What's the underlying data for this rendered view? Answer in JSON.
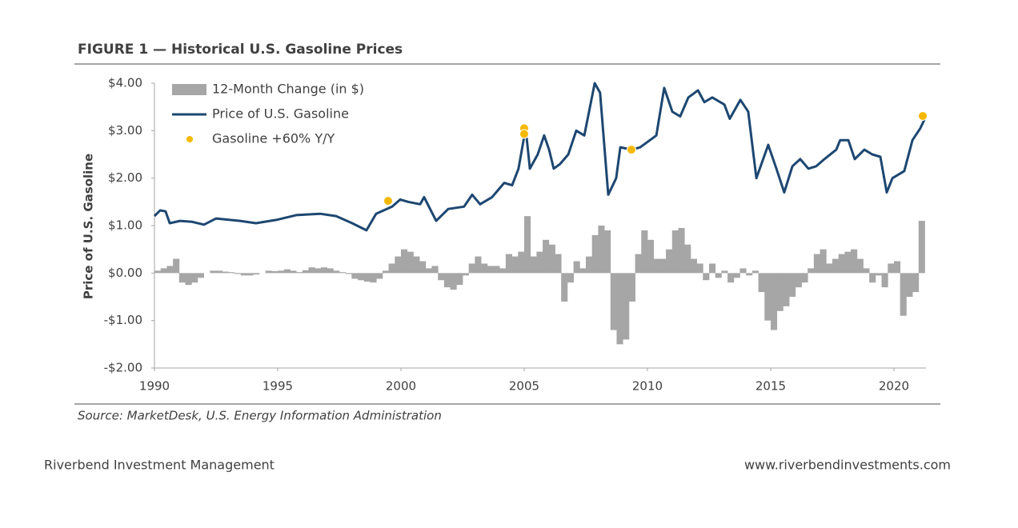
{
  "chart_data": {
    "type": "combo",
    "title": "FIGURE 1 — Historical U.S. Gasoline Prices",
    "y_label": "Price of U.S. Gasoline",
    "source": "Source: MarketDesk, U.S. Energy Information Administration",
    "xlim": [
      1990,
      2021.3
    ],
    "xticks": [
      1990,
      1995,
      2000,
      2005,
      2010,
      2015,
      2020
    ],
    "ylim": [
      -2,
      4
    ],
    "yticks": [
      {
        "value": -2,
        "label": "-$2.00"
      },
      {
        "value": -1,
        "label": "-$1.00"
      },
      {
        "value": 0,
        "label": "$0.00"
      },
      {
        "value": 1,
        "label": "$1.00"
      },
      {
        "value": 2,
        "label": "$2.00"
      },
      {
        "value": 3,
        "label": "$3.00"
      },
      {
        "value": 4,
        "label": "$4.00"
      }
    ],
    "legend": "upper left",
    "series": [
      {
        "name": "12-Month Change (in $)",
        "type": "bar",
        "color": "#a6a6a6",
        "x": [
          1990,
          1990.25,
          1990.5,
          1990.75,
          1991,
          1991.25,
          1991.5,
          1991.75,
          1992,
          1992.25,
          1992.5,
          1992.75,
          1993,
          1993.25,
          1993.5,
          1993.75,
          1994,
          1994.25,
          1994.5,
          1994.75,
          1995,
          1995.25,
          1995.5,
          1995.75,
          1996,
          1996.25,
          1996.5,
          1996.75,
          1997,
          1997.25,
          1997.5,
          1997.75,
          1998,
          1998.25,
          1998.5,
          1998.75,
          1999,
          1999.25,
          1999.5,
          1999.75,
          2000,
          2000.25,
          2000.5,
          2000.75,
          2001,
          2001.25,
          2001.5,
          2001.75,
          2002,
          2002.25,
          2002.5,
          2002.75,
          2003,
          2003.25,
          2003.5,
          2003.75,
          2004,
          2004.25,
          2004.5,
          2004.75,
          2005,
          2005.25,
          2005.5,
          2005.75,
          2006,
          2006.25,
          2006.5,
          2006.75,
          2007,
          2007.25,
          2007.5,
          2007.75,
          2008,
          2008.25,
          2008.5,
          2008.75,
          2009,
          2009.25,
          2009.5,
          2009.75,
          2010,
          2010.25,
          2010.5,
          2010.75,
          2011,
          2011.25,
          2011.5,
          2011.75,
          2012,
          2012.25,
          2012.5,
          2012.75,
          2013,
          2013.25,
          2013.5,
          2013.75,
          2014,
          2014.25,
          2014.5,
          2014.75,
          2015,
          2015.25,
          2015.5,
          2015.75,
          2016,
          2016.25,
          2016.5,
          2016.75,
          2017,
          2017.25,
          2017.5,
          2017.75,
          2018,
          2018.25,
          2018.5,
          2018.75,
          2019,
          2019.25,
          2019.5,
          2019.75,
          2020,
          2020.25,
          2020.5,
          2020.75,
          2021
        ],
        "values": [
          0.05,
          0.1,
          0.15,
          0.3,
          -0.2,
          -0.25,
          -0.2,
          -0.1,
          0,
          0.05,
          0.05,
          0.03,
          0.02,
          -0.02,
          -0.05,
          -0.05,
          -0.03,
          0,
          0.05,
          0.04,
          0.05,
          0.08,
          0.05,
          0.02,
          0.06,
          0.12,
          0.1,
          0.12,
          0.1,
          0.05,
          0.02,
          -0.02,
          -0.12,
          -0.15,
          -0.18,
          -0.2,
          -0.12,
          0.05,
          0.2,
          0.35,
          0.5,
          0.45,
          0.35,
          0.25,
          0.1,
          0.15,
          -0.15,
          -0.3,
          -0.35,
          -0.25,
          -0.05,
          0.2,
          0.35,
          0.2,
          0.15,
          0.15,
          0.1,
          0.4,
          0.35,
          0.45,
          1.2,
          0.35,
          0.45,
          0.7,
          0.6,
          0.4,
          -0.6,
          -0.2,
          0.25,
          0.1,
          0.35,
          0.8,
          1,
          0.9,
          -1.2,
          -1.5,
          -1.4,
          -0.6,
          0.4,
          0.9,
          0.7,
          0.3,
          0.3,
          0.5,
          0.9,
          0.95,
          0.6,
          0.3,
          0.2,
          -0.15,
          0.2,
          -0.1,
          0.05,
          -0.2,
          -0.1,
          0.1,
          -0.05,
          0.05,
          -0.4,
          -1,
          -1.2,
          -0.8,
          -0.7,
          -0.5,
          -0.3,
          -0.2,
          0.1,
          0.4,
          0.5,
          0.2,
          0.3,
          0.4,
          0.45,
          0.5,
          0.3,
          0.1,
          -0.2,
          -0.05,
          -0.3,
          0.2,
          0.25,
          -0.9,
          -0.5,
          -0.4,
          1.1
        ]
      },
      {
        "name": "Price of U.S. Gasoline",
        "type": "line",
        "color": "#1d4771",
        "x": [
          1990,
          1990.23,
          1990.45,
          1990.62,
          1991.04,
          1991.53,
          1992.01,
          1992.5,
          1993.47,
          1994.12,
          1994.94,
          1995.75,
          1996.72,
          1997.37,
          1998.02,
          1998.6,
          1998.99,
          1999.64,
          1999.97,
          2000.29,
          2000.78,
          2000.94,
          2001.43,
          2001.92,
          2002.56,
          2002.89,
          2003.21,
          2003.7,
          2004.19,
          2004.51,
          2004.77,
          2005.06,
          2005.23,
          2005.55,
          2005.81,
          2006.01,
          2006.2,
          2006.46,
          2006.79,
          2007.11,
          2007.44,
          2007.86,
          2008.08,
          2008.41,
          2008.73,
          2008.9,
          2009.38,
          2009.71,
          2010.36,
          2010.68,
          2011.01,
          2011.33,
          2011.66,
          2012.05,
          2012.31,
          2012.63,
          2013.12,
          2013.34,
          2013.77,
          2014.09,
          2014.42,
          2014.9,
          2015.23,
          2015.55,
          2015.88,
          2016.2,
          2016.53,
          2016.85,
          2017.18,
          2017.66,
          2017.82,
          2018.15,
          2018.41,
          2018.8,
          2019.12,
          2019.45,
          2019.71,
          2019.94,
          2020.42,
          2020.75,
          2021.07,
          2021.3
        ],
        "values": [
          1.2,
          1.32,
          1.3,
          1.05,
          1.1,
          1.08,
          1.02,
          1.15,
          1.1,
          1.05,
          1.12,
          1.22,
          1.25,
          1.2,
          1.05,
          0.9,
          1.25,
          1.4,
          1.55,
          1.5,
          1.45,
          1.6,
          1.1,
          1.35,
          1.4,
          1.65,
          1.45,
          1.6,
          1.9,
          1.85,
          2.2,
          3.05,
          2.2,
          2.5,
          2.9,
          2.6,
          2.2,
          2.3,
          2.5,
          3,
          2.9,
          4,
          3.8,
          1.65,
          2,
          2.65,
          2.6,
          2.65,
          2.9,
          3.9,
          3.4,
          3.3,
          3.7,
          3.85,
          3.6,
          3.7,
          3.55,
          3.25,
          3.65,
          3.4,
          2,
          2.7,
          2.2,
          1.7,
          2.25,
          2.4,
          2.2,
          2.25,
          2.4,
          2.6,
          2.8,
          2.8,
          2.4,
          2.6,
          2.5,
          2.45,
          1.7,
          2,
          2.15,
          2.8,
          3.05,
          3.3
        ]
      },
      {
        "name": "Gasoline +60% Y/Y",
        "type": "scatter",
        "color": "#f5b800",
        "x": [
          1999.48,
          2005.0,
          2005.0,
          2009.35,
          2021.17
        ],
        "values": [
          1.52,
          3.05,
          2.93,
          2.6,
          3.31
        ]
      }
    ]
  },
  "footer": {
    "left": "Riverbend Investment Management",
    "right": "www.riverbendinvestments.com"
  }
}
